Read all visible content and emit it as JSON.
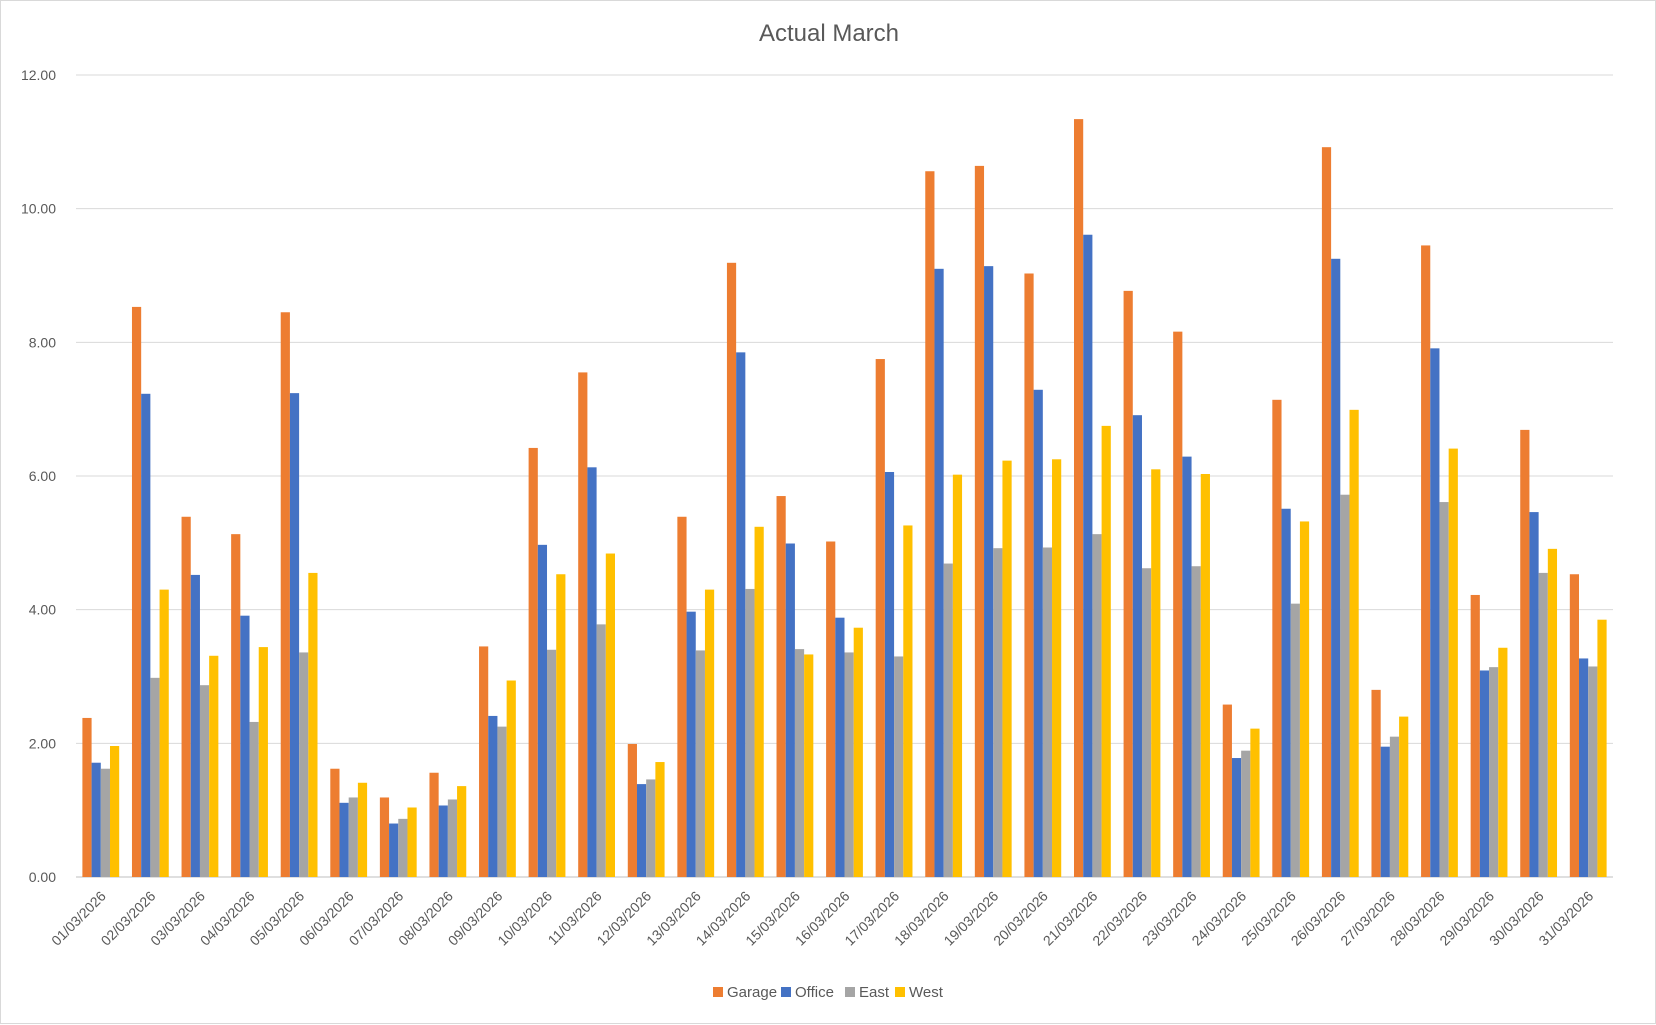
{
  "chart_data": {
    "type": "bar",
    "title": "Actual March",
    "xlabel": "",
    "ylabel": "",
    "ylim": [
      0,
      12
    ],
    "yticks": [
      "0.00",
      "2.00",
      "4.00",
      "6.00",
      "8.00",
      "10.00",
      "12.00"
    ],
    "grid": true,
    "legend_position": "bottom",
    "categories": [
      "01/03/2026",
      "02/03/2026",
      "03/03/2026",
      "04/03/2026",
      "05/03/2026",
      "06/03/2026",
      "07/03/2026",
      "08/03/2026",
      "09/03/2026",
      "10/03/2026",
      "11/03/2026",
      "12/03/2026",
      "13/03/2026",
      "14/03/2026",
      "15/03/2026",
      "16/03/2026",
      "17/03/2026",
      "18/03/2026",
      "19/03/2026",
      "20/03/2026",
      "21/03/2026",
      "22/03/2026",
      "23/03/2026",
      "24/03/2026",
      "25/03/2026",
      "26/03/2026",
      "27/03/2026",
      "28/03/2026",
      "29/03/2026",
      "30/03/2026",
      "31/03/2026"
    ],
    "series": [
      {
        "name": "Garage",
        "color": "#ED7D31",
        "values": [
          2.38,
          8.53,
          5.39,
          5.13,
          8.45,
          1.62,
          1.19,
          1.56,
          3.45,
          6.42,
          7.55,
          1.99,
          5.39,
          9.19,
          5.7,
          5.02,
          7.75,
          10.56,
          10.64,
          9.03,
          11.34,
          8.77,
          8.16,
          2.58,
          7.14,
          10.92,
          2.8,
          9.45,
          4.22,
          6.69,
          4.53
        ]
      },
      {
        "name": "Office",
        "color": "#4472C4",
        "values": [
          1.71,
          7.23,
          4.52,
          3.91,
          7.24,
          1.11,
          0.8,
          1.07,
          2.41,
          4.97,
          6.13,
          1.39,
          3.97,
          7.85,
          4.99,
          3.88,
          6.06,
          9.1,
          9.14,
          7.29,
          9.61,
          6.91,
          6.29,
          1.78,
          5.51,
          9.25,
          1.95,
          7.91,
          3.09,
          5.46,
          3.27
        ]
      },
      {
        "name": "East",
        "color": "#A5A5A5",
        "values": [
          1.62,
          2.98,
          2.87,
          2.32,
          3.36,
          1.19,
          0.87,
          1.16,
          2.25,
          3.4,
          3.78,
          1.46,
          3.39,
          4.31,
          3.41,
          3.36,
          3.3,
          4.69,
          4.92,
          4.93,
          5.13,
          4.62,
          4.65,
          1.89,
          4.09,
          5.72,
          2.1,
          5.61,
          3.14,
          4.55,
          3.15
        ]
      },
      {
        "name": "West",
        "color": "#FFC000",
        "values": [
          1.96,
          4.3,
          3.31,
          3.44,
          4.55,
          1.41,
          1.04,
          1.36,
          2.94,
          4.53,
          4.84,
          1.72,
          4.3,
          5.24,
          3.33,
          3.73,
          5.26,
          6.02,
          6.23,
          6.25,
          6.75,
          6.1,
          6.03,
          2.22,
          5.32,
          6.99,
          2.4,
          6.41,
          3.43,
          4.91,
          3.85
        ]
      }
    ]
  },
  "colors": {
    "grid": "#d9d9d9",
    "axis": "#bfbfbf",
    "text": "#595959"
  }
}
